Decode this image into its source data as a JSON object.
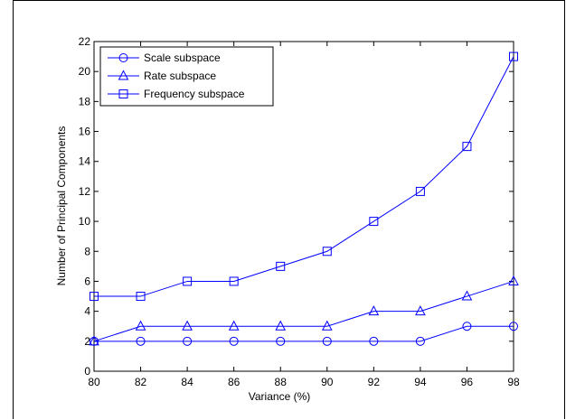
{
  "chart_data": {
    "type": "line",
    "title": "",
    "xlabel": "Variance (%)",
    "ylabel": "Number of Principal Components",
    "x": [
      80,
      82,
      84,
      86,
      88,
      90,
      92,
      94,
      96,
      98
    ],
    "xlim": [
      80,
      98
    ],
    "ylim": [
      0,
      22
    ],
    "xticks": [
      80,
      82,
      84,
      86,
      88,
      90,
      92,
      94,
      96,
      98
    ],
    "yticks": [
      0,
      2,
      4,
      6,
      8,
      10,
      12,
      14,
      16,
      18,
      20,
      22
    ],
    "grid": false,
    "legend_position": "top-left",
    "line_color": "#0000ff",
    "series": [
      {
        "name": "Scale subspace",
        "marker": "circle",
        "values": [
          2,
          2,
          2,
          2,
          2,
          2,
          2,
          2,
          3,
          3
        ]
      },
      {
        "name": "Rate subspace",
        "marker": "triangle",
        "values": [
          2,
          3,
          3,
          3,
          3,
          3,
          4,
          4,
          5,
          6
        ]
      },
      {
        "name": "Frequency subspace",
        "marker": "square",
        "values": [
          5,
          5,
          6,
          6,
          7,
          8,
          10,
          12,
          15,
          21
        ]
      }
    ]
  }
}
